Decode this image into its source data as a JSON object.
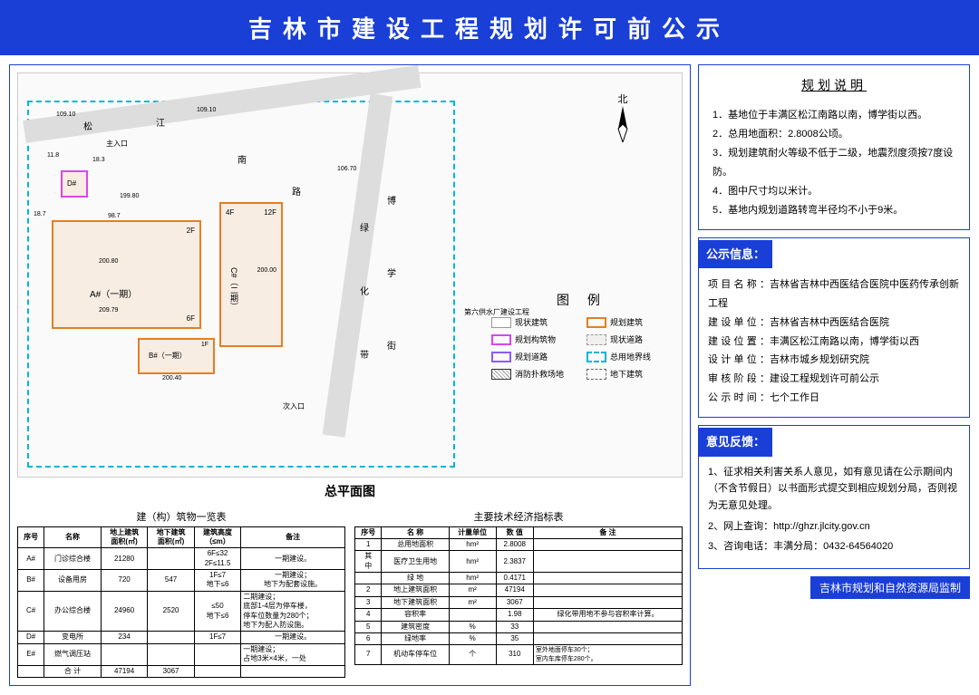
{
  "header": {
    "title": "吉林市建设工程规划许可前公示"
  },
  "map": {
    "title": "总平面图",
    "compass_label": "北",
    "roads": {
      "songjiang": "松",
      "jiang": "江",
      "nan": "南",
      "lu": "路",
      "lv": "绿",
      "hua": "化",
      "bo": "博",
      "xue": "学",
      "dai": "带",
      "jie": "街"
    },
    "entries": {
      "main": "主入口",
      "sub": "次入口"
    },
    "bldg_labels": {
      "a": "A#（一期）",
      "b": "B#（一期）",
      "c": "C#（二期）",
      "d": "D#"
    },
    "dims": {
      "d1": "109.10",
      "d2": "109.10",
      "d3": "199.80",
      "d4": "200.80",
      "d5": "209.79",
      "d6": "98.7",
      "d7": "106.70",
      "d8": "18.7",
      "d9": "11.8",
      "d10": "18.3",
      "d11": "200.40",
      "d12": "200.00"
    },
    "floors": {
      "f2": "2F",
      "f12": "12F",
      "f1": "1F",
      "f6": "6F",
      "f4": "4F"
    },
    "note": "第六供水厂建设工程"
  },
  "legend": {
    "title": "图 例",
    "items": [
      {
        "label": "现状建筑",
        "style": "border:1px solid #999;background:#fff"
      },
      {
        "label": "规划建筑",
        "style": "border:2px solid #e67e22"
      },
      {
        "label": "规划构筑物",
        "style": "border:2px solid #d946ef"
      },
      {
        "label": "现状道路",
        "style": "border:1px dashed #999;background:#f0f0f0"
      },
      {
        "label": "规划道路",
        "style": "border:2px solid #8b5cf6"
      },
      {
        "label": "总用地界线",
        "style": "border:2px dashed #06b6d4"
      },
      {
        "label": "消防扑救场地",
        "style": "background:repeating-linear-gradient(45deg,#fff,#fff 2px,#999 2px,#999 3px)"
      },
      {
        "label": "地下建筑",
        "style": "border:1px dashed #666"
      }
    ]
  },
  "building_table": {
    "title": "建（构）筑物一览表",
    "headers": [
      "序号",
      "名称",
      "地上建筑\n面积(㎡)",
      "地下建筑\n面积(㎡)",
      "建筑高度\n（≤m）",
      "备注"
    ],
    "rows": [
      [
        "A#",
        "门诊综合楼",
        "21280",
        "",
        "6F≤32\n2F≤11.5",
        "一期建设。"
      ],
      [
        "B#",
        "设备用房",
        "720",
        "547",
        "1F≤7\n地下≤6",
        "一期建设；\n地下为配套设施。"
      ],
      [
        "C#",
        "办公综合楼",
        "24960",
        "2520",
        "≤50\n地下≤6",
        "二期建设；\n底部1-4层为停车楼，\n停车位数量为280个；\n地下为配入防设施。"
      ],
      [
        "D#",
        "变电所",
        "234",
        "",
        "1F≤7",
        "一期建设。"
      ],
      [
        "E#",
        "燃气调压站",
        "",
        "",
        "",
        "一期建设；\n占地3米×4米，一处"
      ],
      [
        "",
        "合 计",
        "47194",
        "3067",
        "",
        ""
      ]
    ]
  },
  "tech_table": {
    "title": "主要技术经济指标表",
    "headers": [
      "序号",
      "名 称",
      "计量单位",
      "数 值",
      "备 注"
    ],
    "rows": [
      [
        "1",
        "总用地面积",
        "hm²",
        "2.8008",
        ""
      ],
      [
        "其\n中",
        "医疗卫生用地",
        "hm²",
        "2.3837",
        ""
      ],
      [
        "",
        "绿 地",
        "hm²",
        "0.4171",
        ""
      ],
      [
        "2",
        "地上建筑面积",
        "m²",
        "47194",
        ""
      ],
      [
        "3",
        "地下建筑面积",
        "m²",
        "3067",
        ""
      ],
      [
        "4",
        "容积率",
        "",
        "1.98",
        "绿化带用地不参与容积率计算。"
      ],
      [
        "5",
        "建筑密度",
        "%",
        "33",
        ""
      ],
      [
        "6",
        "绿地率",
        "%",
        "35",
        ""
      ],
      [
        "7",
        "机动车停车位",
        "个",
        "310",
        "室外地面停车30个；\n室内车库停车280个。"
      ]
    ]
  },
  "spec": {
    "title": "规划说明",
    "items": [
      "1．基地位于丰满区松江南路以南，博学街以西。",
      "2．总用地面积：2.8008公顷。",
      "3．规划建筑耐火等级不低于二级，地震烈度须按7度设防。",
      "4．图中尺寸均以米计。",
      "5．基地内规划道路转弯半径均不小于9米。"
    ]
  },
  "info": {
    "header": "公示信息：",
    "rows": [
      {
        "label": "项目名称：",
        "value": "吉林省吉林中西医结合医院中医药传承创新工程"
      },
      {
        "label": "建设单位：",
        "value": "吉林省吉林中西医结合医院"
      },
      {
        "label": "建设位置：",
        "value": "丰满区松江南路以南，博学街以西"
      },
      {
        "label": "设计单位：",
        "value": "吉林市城乡规划研究院"
      },
      {
        "label": "审核阶段：",
        "value": "建设工程规划许可前公示"
      },
      {
        "label": "公示时间：",
        "value": "七个工作日"
      }
    ]
  },
  "feedback": {
    "header": "意见反馈：",
    "items": [
      "1、征求相关利害关系人意见，如有意见请在公示期间内（不含节假日）以书面形式提交到相应规划分局，否则视为无意见处理。",
      "2、网上查询：http://ghzr.jlcity.gov.cn",
      "3、咨询电话：丰满分局：0432-64564020"
    ]
  },
  "footer": {
    "stamp": "吉林市规划和自然资源局监制"
  }
}
